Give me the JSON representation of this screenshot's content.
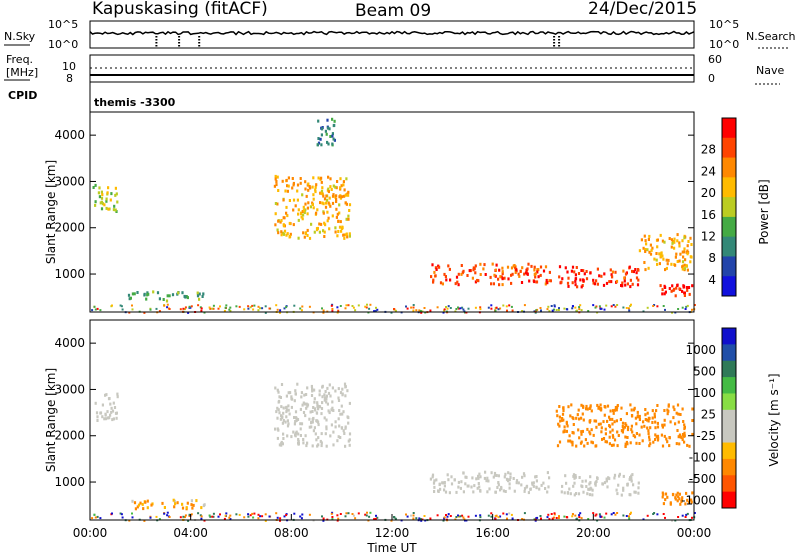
{
  "header": {
    "station": "Kapuskasing (fitACF)",
    "beam": "Beam 09",
    "date": "24/Dec/2015"
  },
  "top_panel": {
    "left_label": "N.Sky",
    "right_label": "N.Search",
    "tick_top": "10^5",
    "tick_bottom": "10^0"
  },
  "freq_panel": {
    "label_line1": "Freq.",
    "label_line2": "[MHz]",
    "left_tick_top": "10",
    "left_tick_bottom": "8",
    "right_label": "Nave",
    "right_tick_top": "60",
    "right_tick_bottom": "0"
  },
  "cpid": {
    "label": "CPID",
    "value": "themis -3300"
  },
  "x_axis": {
    "title": "Time UT",
    "ticks": [
      "00:00",
      "04:00",
      "08:00",
      "12:00",
      "16:00",
      "20:00",
      "00:00"
    ]
  },
  "power_colorbar": {
    "title": "Power [dB]",
    "ticks": [
      "28",
      "24",
      "20",
      "16",
      "12",
      "8",
      "4"
    ],
    "colors": [
      "#ff0000",
      "#ff4400",
      "#ff8800",
      "#ffbb00",
      "#bbcc22",
      "#44aa44",
      "#338877",
      "#2244aa",
      "#1111dd"
    ]
  },
  "velocity_colorbar": {
    "title": "Velocity [m s⁻¹]",
    "ticks": [
      "1000",
      "500",
      "100",
      "25",
      "-25",
      "-100",
      "-500",
      "-1000"
    ],
    "colors": [
      "#1010cc",
      "#204fa8",
      "#2f7a58",
      "#44bb44",
      "#88dd44",
      "#c8c8c0",
      "#c8c8c0",
      "#ffbb00",
      "#ff8800",
      "#ff5500",
      "#ff0000"
    ]
  },
  "chart_data": [
    {
      "type": "heatmap",
      "title": "Power",
      "xlabel": "Time UT",
      "ylabel": "Slant Range [km]",
      "xlim": [
        "00:00",
        "24:00"
      ],
      "ylim": [
        180,
        4500
      ],
      "y_ticks": [
        1000,
        2000,
        3000,
        4000
      ],
      "colorbar_range": [
        0,
        30
      ],
      "features": [
        {
          "t_start": 0.1,
          "t_end": 1.1,
          "r_start": 2350,
          "r_end": 2950,
          "power": 14
        },
        {
          "t_start": 1.5,
          "t_end": 4.6,
          "r_start": 450,
          "r_end": 650,
          "power": 10
        },
        {
          "t_start": 7.3,
          "t_end": 10.3,
          "r_start": 1800,
          "r_end": 3150,
          "power": 20
        },
        {
          "t_start": 9.0,
          "t_end": 9.7,
          "r_start": 3800,
          "r_end": 4400,
          "power": 8
        },
        {
          "t_start": 13.5,
          "t_end": 18.3,
          "r_start": 800,
          "r_end": 1250,
          "power": 26
        },
        {
          "t_start": 18.6,
          "t_end": 21.8,
          "r_start": 750,
          "r_end": 1200,
          "power": 28
        },
        {
          "t_start": 21.8,
          "t_end": 23.9,
          "r_start": 1100,
          "r_end": 1900,
          "power": 20
        },
        {
          "t_start": 22.6,
          "t_end": 23.9,
          "r_start": 550,
          "r_end": 800,
          "power": 30
        }
      ]
    },
    {
      "type": "heatmap",
      "title": "Velocity",
      "xlabel": "Time UT",
      "ylabel": "Slant Range [km]",
      "xlim": [
        "00:00",
        "24:00"
      ],
      "ylim": [
        180,
        4500
      ],
      "y_ticks": [
        1000,
        2000,
        3000,
        4000
      ],
      "colorbar_range": [
        -1000,
        1000
      ],
      "features": [
        {
          "t_start": 0.1,
          "t_end": 1.1,
          "r_start": 2350,
          "r_end": 2950,
          "velocity": 0
        },
        {
          "t_start": 1.5,
          "t_end": 4.6,
          "r_start": 450,
          "r_end": 650,
          "velocity": -100
        },
        {
          "t_start": 7.3,
          "t_end": 10.3,
          "r_start": 1800,
          "r_end": 3150,
          "velocity": 0
        },
        {
          "t_start": 13.5,
          "t_end": 18.3,
          "r_start": 800,
          "r_end": 1250,
          "velocity": 0
        },
        {
          "t_start": 18.6,
          "t_end": 21.8,
          "r_start": 750,
          "r_end": 1200,
          "velocity": 0
        },
        {
          "t_start": 18.5,
          "t_end": 23.9,
          "r_start": 1800,
          "r_end": 2700,
          "velocity": -300
        },
        {
          "t_start": 22.6,
          "t_end": 23.9,
          "r_start": 550,
          "r_end": 800,
          "velocity": -300
        }
      ]
    }
  ]
}
